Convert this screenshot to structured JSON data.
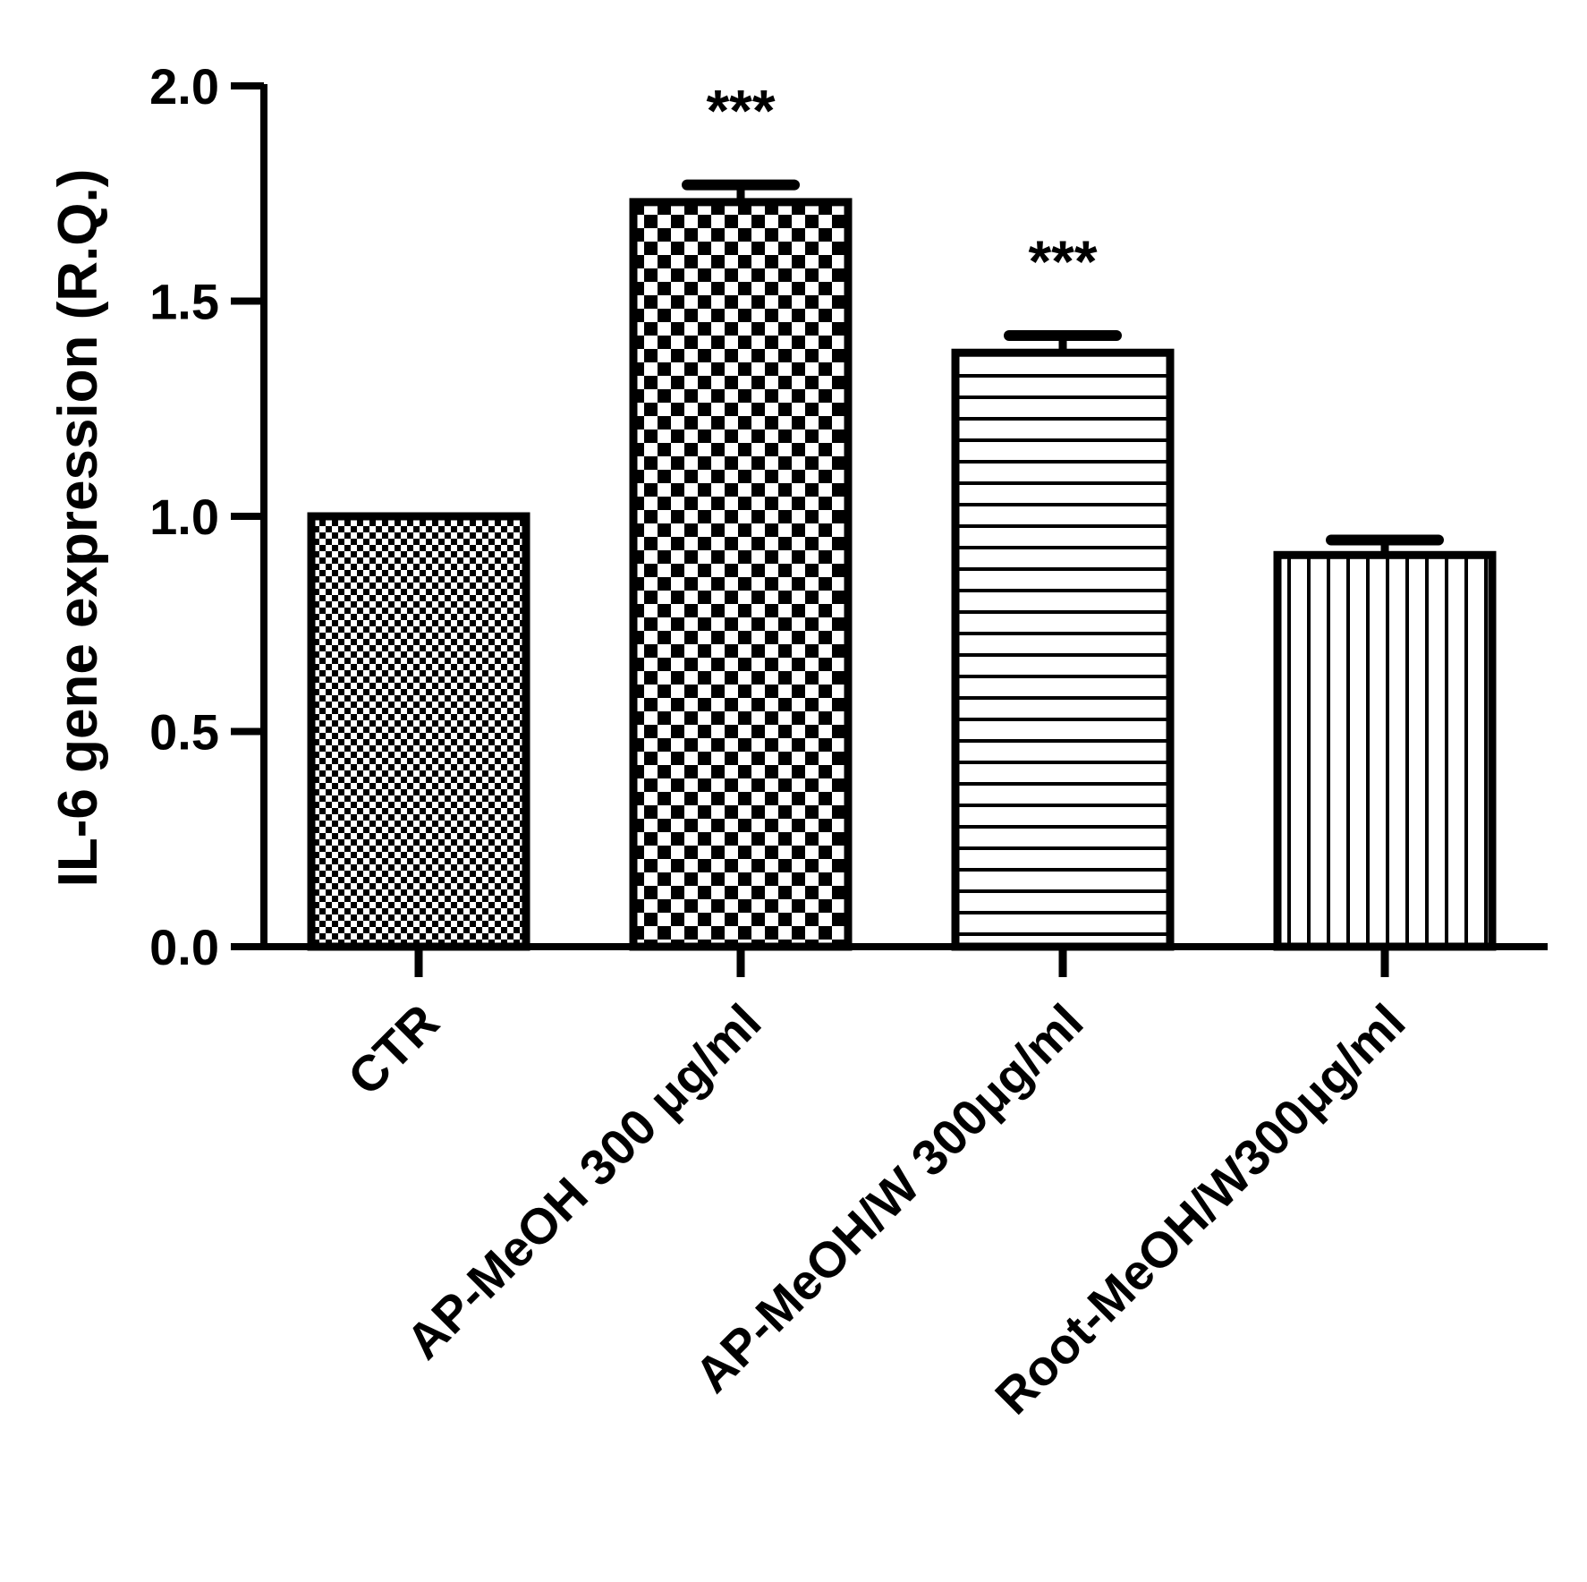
{
  "chart_data": {
    "type": "bar",
    "title": "",
    "xlabel": "",
    "ylabel": "IL-6 gene expression (R.Q.)",
    "ylim": [
      0,
      2.0
    ],
    "yticks": [
      "0.0",
      "0.5",
      "1.0",
      "1.5",
      "2.0"
    ],
    "yticks_values": [
      0,
      0.5,
      1.0,
      1.5,
      2.0
    ],
    "grid": false,
    "legend": "none",
    "categories": [
      "CTR",
      "AP-MeOH 300 μg/ml",
      "AP-MeOH/W 300μg/ml",
      "Root-MeOH/W300μg/ml"
    ],
    "values": [
      1.0,
      1.73,
      1.38,
      0.91
    ],
    "errors": [
      0.0,
      0.04,
      0.04,
      0.035
    ],
    "annotations": [
      "",
      "***",
      "***",
      ""
    ],
    "patterns": [
      "fine-checker",
      "coarse-checker",
      "horizontal-lines",
      "vertical-lines"
    ],
    "colors": {
      "bar_fill": "#ffffff",
      "bar_edge": "#000000",
      "pattern": "#000000"
    }
  }
}
